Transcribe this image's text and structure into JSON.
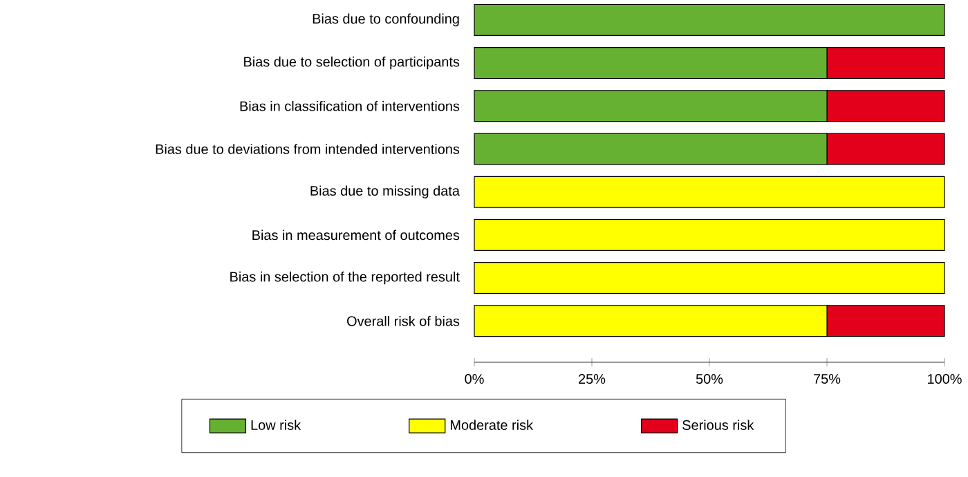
{
  "chart_data": {
    "type": "bar",
    "orientation": "horizontal",
    "stacked": true,
    "categories": [
      "Bias due to confounding",
      "Bias due to selection of participants",
      "Bias in classification of interventions",
      "Bias due to deviations from intended interventions",
      "Bias due to missing data",
      "Bias in measurement of outcomes",
      "Bias in selection of the reported result",
      "Overall risk of bias"
    ],
    "series": [
      {
        "name": "Low risk",
        "color": "#66b032",
        "values": [
          100,
          75,
          75,
          75,
          0,
          0,
          0,
          0
        ]
      },
      {
        "name": "Moderate risk",
        "color": "#ffff00",
        "values": [
          0,
          0,
          0,
          0,
          100,
          100,
          100,
          75
        ]
      },
      {
        "name": "Serious risk",
        "color": "#e3001b",
        "values": [
          0,
          25,
          25,
          25,
          0,
          0,
          0,
          25
        ]
      }
    ],
    "xlim": [
      0,
      100
    ],
    "xticks": [
      {
        "value": 0,
        "label": "0%"
      },
      {
        "value": 25,
        "label": "25%"
      },
      {
        "value": 50,
        "label": "50%"
      },
      {
        "value": 75,
        "label": "75%"
      },
      {
        "value": 100,
        "label": "100%"
      }
    ],
    "grid": false,
    "legend": "bottom"
  }
}
